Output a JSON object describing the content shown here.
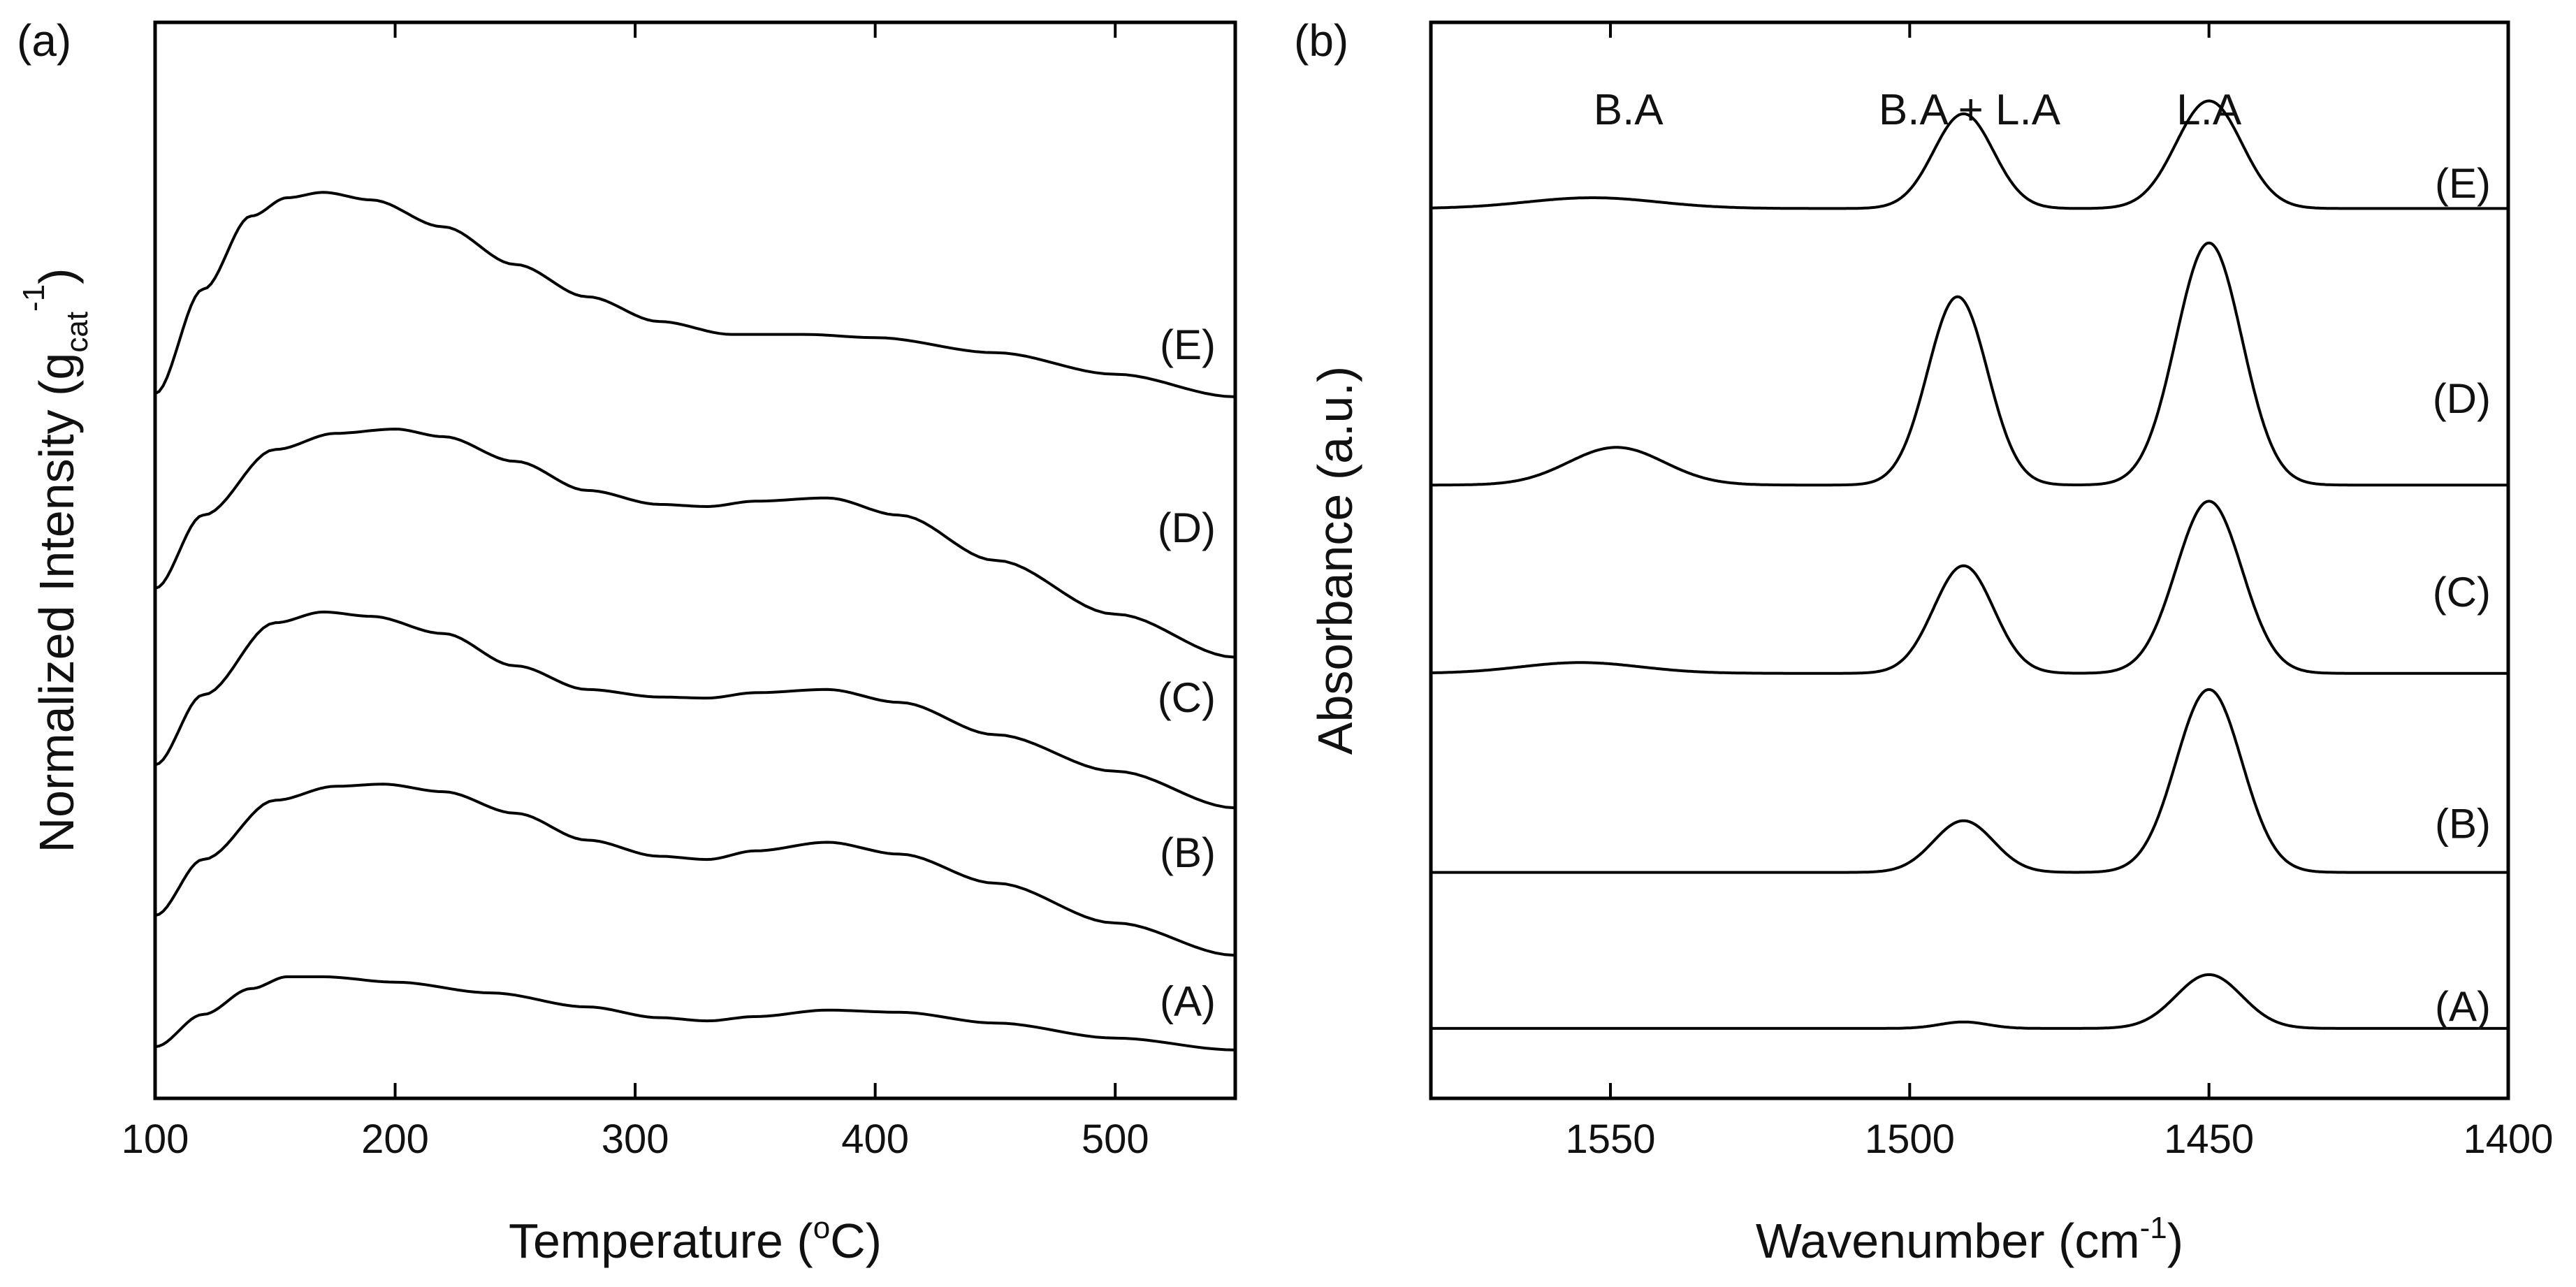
{
  "chart_data": [
    {
      "panel_label": "(a)",
      "type": "line",
      "xlabel": {
        "main": "Temperature (",
        "sup": "o",
        "unit": "C)"
      },
      "ylabel": {
        "main": "Normalized Intensity (g",
        "sub": "cat",
        "sup": "-1",
        "end": ")"
      },
      "xlim": [
        100,
        550
      ],
      "xticks": [
        100,
        200,
        300,
        400,
        500
      ],
      "yticks": [],
      "grid": false,
      "ylim": [
        0,
        10
      ],
      "series": [
        {
          "name": "(A)",
          "points": [
            [
              100,
              0.48
            ],
            [
              120,
              0.78
            ],
            [
              140,
              1.02
            ],
            [
              155,
              1.13
            ],
            [
              170,
              1.13
            ],
            [
              200,
              1.08
            ],
            [
              240,
              0.98
            ],
            [
              280,
              0.85
            ],
            [
              310,
              0.75
            ],
            [
              330,
              0.72
            ],
            [
              350,
              0.76
            ],
            [
              380,
              0.82
            ],
            [
              410,
              0.8
            ],
            [
              450,
              0.7
            ],
            [
              500,
              0.56
            ],
            [
              550,
              0.45
            ]
          ]
        },
        {
          "name": "(B)",
          "points": [
            [
              100,
              1.7
            ],
            [
              120,
              2.22
            ],
            [
              150,
              2.77
            ],
            [
              175,
              2.9
            ],
            [
              195,
              2.92
            ],
            [
              220,
              2.85
            ],
            [
              250,
              2.65
            ],
            [
              280,
              2.4
            ],
            [
              310,
              2.25
            ],
            [
              330,
              2.22
            ],
            [
              350,
              2.3
            ],
            [
              380,
              2.38
            ],
            [
              410,
              2.27
            ],
            [
              450,
              2.0
            ],
            [
              500,
              1.63
            ],
            [
              550,
              1.33
            ]
          ]
        },
        {
          "name": "(C)",
          "points": [
            [
              100,
              3.1
            ],
            [
              120,
              3.75
            ],
            [
              150,
              4.42
            ],
            [
              170,
              4.52
            ],
            [
              190,
              4.48
            ],
            [
              220,
              4.32
            ],
            [
              250,
              4.02
            ],
            [
              280,
              3.8
            ],
            [
              310,
              3.73
            ],
            [
              330,
              3.72
            ],
            [
              350,
              3.77
            ],
            [
              380,
              3.8
            ],
            [
              410,
              3.68
            ],
            [
              450,
              3.38
            ],
            [
              500,
              3.04
            ],
            [
              550,
              2.7
            ]
          ]
        },
        {
          "name": "(D)",
          "points": [
            [
              100,
              4.74
            ],
            [
              120,
              5.42
            ],
            [
              150,
              6.03
            ],
            [
              175,
              6.18
            ],
            [
              200,
              6.22
            ],
            [
              220,
              6.15
            ],
            [
              250,
              5.92
            ],
            [
              280,
              5.65
            ],
            [
              310,
              5.52
            ],
            [
              330,
              5.5
            ],
            [
              350,
              5.55
            ],
            [
              380,
              5.58
            ],
            [
              410,
              5.42
            ],
            [
              450,
              5.0
            ],
            [
              500,
              4.5
            ],
            [
              550,
              4.1
            ]
          ]
        },
        {
          "name": "(E)",
          "points": [
            [
              100,
              6.55
            ],
            [
              120,
              7.52
            ],
            [
              140,
              8.2
            ],
            [
              155,
              8.37
            ],
            [
              170,
              8.42
            ],
            [
              190,
              8.35
            ],
            [
              220,
              8.1
            ],
            [
              250,
              7.75
            ],
            [
              280,
              7.45
            ],
            [
              310,
              7.22
            ],
            [
              340,
              7.1
            ],
            [
              370,
              7.1
            ],
            [
              400,
              7.07
            ],
            [
              450,
              6.93
            ],
            [
              500,
              6.73
            ],
            [
              550,
              6.52
            ]
          ]
        }
      ],
      "curve_labels": [
        {
          "text": "(E)",
          "y": 7.0
        },
        {
          "text": "(D)",
          "y": 5.3
        },
        {
          "text": "(C)",
          "y": 3.72
        },
        {
          "text": "(B)",
          "y": 2.28
        },
        {
          "text": "(A)",
          "y": 0.9
        }
      ]
    },
    {
      "panel_label": "(b)",
      "type": "line",
      "xlabel": {
        "main": "Wavenumber (cm",
        "sup": "-1",
        "end": ")"
      },
      "ylabel": {
        "main": "Absorbance (a.u.)"
      },
      "xlim": [
        1580,
        1400
      ],
      "xticks": [
        1550,
        1500,
        1450,
        1400
      ],
      "yticks": [],
      "grid": false,
      "ylim": [
        0,
        10
      ],
      "band_labels": [
        {
          "text": "B.A",
          "x": 1547
        },
        {
          "text": "B.A + L.A",
          "x": 1490
        },
        {
          "text": "L.A",
          "x": 1450
        }
      ],
      "series": [
        {
          "name": "(A)",
          "baseline": 0.65,
          "features": [
            [
              1491,
              0.06,
              4
            ],
            [
              1450,
              0.5,
              5.5
            ]
          ]
        },
        {
          "name": "(B)",
          "baseline": 2.1,
          "features": [
            [
              1491,
              0.48,
              5
            ],
            [
              1450,
              1.7,
              5.5
            ]
          ]
        },
        {
          "name": "(C)",
          "baseline": 3.95,
          "features": [
            [
              1555,
              0.1,
              10
            ],
            [
              1491,
              1.0,
              5
            ],
            [
              1450,
              1.6,
              5.5
            ]
          ]
        },
        {
          "name": "(D)",
          "baseline": 5.7,
          "features": [
            [
              1549,
              0.35,
              8
            ],
            [
              1492,
              1.75,
              5
            ],
            [
              1450,
              2.25,
              5.5
            ]
          ]
        },
        {
          "name": "(E)",
          "baseline": 8.27,
          "features": [
            [
              1553,
              0.1,
              11
            ],
            [
              1491,
              0.88,
              5
            ],
            [
              1450,
              1.0,
              5.5
            ]
          ]
        }
      ],
      "curve_labels": [
        {
          "text": "(E)",
          "y": 8.5
        },
        {
          "text": "(D)",
          "y": 6.5
        },
        {
          "text": "(C)",
          "y": 4.7
        },
        {
          "text": "(B)",
          "y": 2.55
        },
        {
          "text": "(A)",
          "y": 0.85
        }
      ]
    }
  ]
}
